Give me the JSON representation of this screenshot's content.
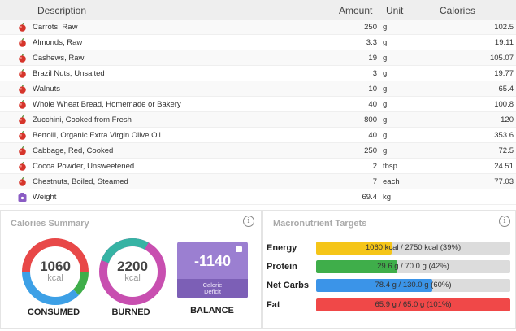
{
  "table": {
    "headers": {
      "description": "Description",
      "amount": "Amount",
      "unit": "Unit",
      "calories": "Calories"
    },
    "rows": [
      {
        "icon": "apple-icon",
        "description": "Carrots, Raw",
        "amount": "250",
        "unit": "g",
        "calories": "102.5"
      },
      {
        "icon": "apple-icon",
        "description": "Almonds, Raw",
        "amount": "3.3",
        "unit": "g",
        "calories": "19.11"
      },
      {
        "icon": "apple-icon",
        "description": "Cashews, Raw",
        "amount": "19",
        "unit": "g",
        "calories": "105.07"
      },
      {
        "icon": "apple-icon",
        "description": "Brazil Nuts, Unsalted",
        "amount": "3",
        "unit": "g",
        "calories": "19.77"
      },
      {
        "icon": "apple-icon",
        "description": "Walnuts",
        "amount": "10",
        "unit": "g",
        "calories": "65.4"
      },
      {
        "icon": "apple-icon",
        "description": "Whole Wheat Bread, Homemade or Bakery",
        "amount": "40",
        "unit": "g",
        "calories": "100.8"
      },
      {
        "icon": "apple-icon",
        "description": "Zucchini, Cooked from Fresh",
        "amount": "800",
        "unit": "g",
        "calories": "120"
      },
      {
        "icon": "apple-icon",
        "description": "Bertolli, Organic Extra Virgin Olive Oil",
        "amount": "40",
        "unit": "g",
        "calories": "353.6"
      },
      {
        "icon": "apple-icon",
        "description": "Cabbage, Red, Cooked",
        "amount": "250",
        "unit": "g",
        "calories": "72.5"
      },
      {
        "icon": "apple-icon",
        "description": "Cocoa Powder, Unsweetened",
        "amount": "2",
        "unit": "tbsp",
        "calories": "24.51"
      },
      {
        "icon": "apple-icon",
        "description": "Chestnuts, Boiled, Steamed",
        "amount": "7",
        "unit": "each",
        "calories": "77.03"
      },
      {
        "icon": "scale-icon",
        "description": "Weight",
        "amount": "69.4",
        "unit": "kg",
        "calories": ""
      }
    ]
  },
  "calories_summary": {
    "title": "Calories Summary",
    "info_icon": "info-icon",
    "consumed": {
      "value": "1060",
      "unit": "kcal",
      "label": "CONSUMED"
    },
    "burned": {
      "value": "2200",
      "unit": "kcal",
      "label": "BURNED"
    },
    "balance": {
      "value": "-1140",
      "sub_line1": "Calorie",
      "sub_line2": "Deficit",
      "label": "BALANCE"
    }
  },
  "macronutrient_targets": {
    "title": "Macronutrient Targets",
    "info_icon": "info-icon",
    "rows": [
      {
        "label": "Energy",
        "text": "1060 kcal / 2750 kcal (39%)",
        "fraction": 0.39,
        "color": "#f5c518"
      },
      {
        "label": "Protein",
        "text": "29.6 g / 70.0 g (42%)",
        "fraction": 0.42,
        "color": "#3fae4a"
      },
      {
        "label": "Net Carbs",
        "text": "78.4 g / 130.0 g (60%)",
        "fraction": 0.6,
        "color": "#3b94e8"
      },
      {
        "label": "Fat",
        "text": "65.9 g / 65.0 g (101%)",
        "fraction": 1.0,
        "color": "#f04848"
      }
    ]
  },
  "colors": {
    "consumed_red": "#e84848",
    "consumed_blue": "#3da0e6",
    "consumed_green": "#3fae4a",
    "burned_pink": "#c84fb0",
    "burned_teal": "#36b3a4",
    "balance_purple": "#9b7fd1"
  }
}
